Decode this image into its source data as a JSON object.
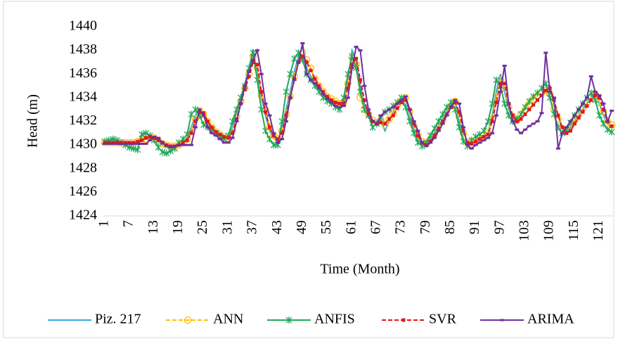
{
  "chart_data": {
    "type": "line",
    "x_label": "Time (Month)",
    "y_label": "Head (m)",
    "categories": [
      1,
      null,
      null,
      null,
      null,
      null,
      7,
      null,
      null,
      null,
      null,
      null,
      13,
      null,
      null,
      null,
      null,
      null,
      19,
      null,
      null,
      null,
      null,
      null,
      25,
      null,
      null,
      null,
      null,
      null,
      31,
      null,
      null,
      null,
      null,
      null,
      37,
      null,
      null,
      null,
      null,
      null,
      43,
      null,
      null,
      null,
      null,
      null,
      49,
      null,
      null,
      null,
      null,
      null,
      55,
      null,
      null,
      null,
      null,
      null,
      61,
      null,
      null,
      null,
      null,
      null,
      67,
      null,
      null,
      null,
      null,
      null,
      73,
      null,
      null,
      null,
      null,
      null,
      79,
      null,
      null,
      null,
      null,
      null,
      85,
      null,
      null,
      null,
      null,
      null,
      91,
      null,
      null,
      null,
      null,
      null,
      97,
      null,
      null,
      null,
      null,
      null,
      103,
      null,
      null,
      null,
      null,
      null,
      109,
      null,
      null,
      null,
      null,
      null,
      115,
      null,
      null,
      null,
      null,
      null,
      121,
      null,
      null,
      null
    ],
    "ylim": [
      1424,
      1440
    ],
    "yticks": [
      1424,
      1426,
      1428,
      1430,
      1432,
      1434,
      1436,
      1438,
      1440
    ],
    "grid": false,
    "series": [
      {
        "name": "Piz. 217",
        "color": "#35a9e0",
        "marker": "none",
        "dashed": false,
        "values": [
          1430.2,
          1430.2,
          1430.2,
          1430.1,
          1430.2,
          1430.2,
          1430.1,
          1430.2,
          1430.3,
          1430.4,
          1430.5,
          1430.6,
          1430.5,
          1430.3,
          1430.0,
          1429.9,
          1429.8,
          1429.9,
          1430.0,
          1430.3,
          1430.6,
          1431.5,
          1432.5,
          1433.0,
          1432.4,
          1431.8,
          1431.3,
          1431.0,
          1430.8,
          1430.6,
          1430.5,
          1431.5,
          1432.8,
          1434.0,
          1435.2,
          1436.5,
          1438.1,
          1436.0,
          1434.0,
          1432.5,
          1431.2,
          1430.6,
          1430.3,
          1431.5,
          1433.0,
          1434.5,
          1436.2,
          1437.5,
          1438.3,
          1436.5,
          1435.8,
          1435.3,
          1434.9,
          1434.5,
          1434.0,
          1433.8,
          1433.6,
          1433.4,
          1433.5,
          1435.5,
          1438.0,
          1437.2,
          1435.0,
          1433.5,
          1432.5,
          1432.0,
          1431.8,
          1432.0,
          1431.2,
          1432.0,
          1432.8,
          1433.5,
          1433.9,
          1434.0,
          1432.5,
          1431.3,
          1430.5,
          1430.1,
          1430.0,
          1430.5,
          1431.0,
          1431.6,
          1432.2,
          1432.8,
          1433.4,
          1433.8,
          1432.0,
          1430.5,
          1430.0,
          1430.2,
          1430.4,
          1430.6,
          1430.8,
          1431.0,
          1432.5,
          1434.5,
          1436.0,
          1434.5,
          1433.0,
          1432.3,
          1432.0,
          1432.3,
          1432.6,
          1433.0,
          1433.4,
          1433.8,
          1434.2,
          1434.6,
          1435.0,
          1433.5,
          1432.5,
          1431.5,
          1431.0,
          1431.5,
          1432.0,
          1432.5,
          1433.0,
          1433.5,
          1434.0,
          1434.5,
          1433.5,
          1432.5,
          1431.8,
          1431.5
        ]
      },
      {
        "name": "ANN",
        "color": "#ffc000",
        "marker": "circle",
        "dashed": true,
        "values": [
          1430.2,
          1430.2,
          1430.2,
          1430.2,
          1430.2,
          1430.2,
          1430.2,
          1430.2,
          1430.3,
          1430.4,
          1430.5,
          1430.6,
          1430.6,
          1430.4,
          1430.1,
          1430.0,
          1429.9,
          1429.9,
          1430.0,
          1430.2,
          1430.5,
          1431.2,
          1432.2,
          1432.9,
          1432.6,
          1432.0,
          1431.5,
          1431.1,
          1430.9,
          1430.7,
          1430.6,
          1431.2,
          1432.4,
          1433.7,
          1434.8,
          1436.0,
          1437.5,
          1436.5,
          1434.2,
          1433.0,
          1431.5,
          1430.8,
          1430.5,
          1431.2,
          1432.6,
          1434.1,
          1435.8,
          1437.3,
          1437.8,
          1437.2,
          1436.5,
          1435.6,
          1435.0,
          1434.5,
          1434.1,
          1433.9,
          1433.7,
          1433.5,
          1433.6,
          1435.2,
          1437.4,
          1436.8,
          1434.0,
          1433.0,
          1432.6,
          1432.1,
          1431.9,
          1432.1,
          1431.7,
          1432.2,
          1432.7,
          1433.4,
          1433.8,
          1434.0,
          1432.8,
          1431.6,
          1430.8,
          1430.3,
          1430.1,
          1430.5,
          1430.9,
          1431.5,
          1432.1,
          1432.7,
          1433.3,
          1433.7,
          1432.4,
          1431.0,
          1430.2,
          1430.3,
          1430.4,
          1430.6,
          1430.8,
          1431.0,
          1432.2,
          1434.0,
          1435.5,
          1434.8,
          1433.2,
          1432.4,
          1432.1,
          1432.6,
          1433.0,
          1433.5,
          1433.9,
          1434.2,
          1434.4,
          1434.6,
          1434.3,
          1433.0,
          1432.2,
          1431.4,
          1431.2,
          1431.6,
          1432.1,
          1432.6,
          1433.1,
          1433.6,
          1434.0,
          1434.3,
          1433.6,
          1432.8,
          1432.0,
          1431.7
        ]
      },
      {
        "name": "ANFIS",
        "color": "#1fa95a",
        "marker": "star",
        "dashed": false,
        "values": [
          1430.3,
          1430.4,
          1430.5,
          1430.4,
          1430.2,
          1430.0,
          1429.8,
          1429.7,
          1429.6,
          1430.9,
          1431.0,
          1430.8,
          1430.4,
          1429.8,
          1429.4,
          1429.3,
          1429.5,
          1429.7,
          1430.2,
          1430.5,
          1430.9,
          1432.6,
          1433.0,
          1432.5,
          1431.7,
          1431.5,
          1431.3,
          1431.0,
          1430.7,
          1430.5,
          1430.8,
          1432.0,
          1433.0,
          1434.0,
          1435.0,
          1436.5,
          1437.8,
          1435.5,
          1433.0,
          1431.2,
          1430.5,
          1430.0,
          1430.0,
          1432.0,
          1434.5,
          1436.0,
          1437.3,
          1437.8,
          1437.2,
          1436.0,
          1435.5,
          1435.0,
          1434.5,
          1434.0,
          1433.7,
          1433.5,
          1433.2,
          1433.0,
          1434.0,
          1436.0,
          1437.5,
          1436.5,
          1434.5,
          1433.0,
          1432.5,
          1431.5,
          1431.8,
          1432.3,
          1432.8,
          1433.0,
          1433.3,
          1433.6,
          1434.0,
          1433.2,
          1432.0,
          1431.0,
          1430.2,
          1429.9,
          1430.2,
          1430.8,
          1431.4,
          1432.0,
          1432.6,
          1433.2,
          1433.6,
          1433.0,
          1431.5,
          1430.3,
          1429.9,
          1430.4,
          1430.7,
          1430.9,
          1431.2,
          1432.0,
          1433.5,
          1435.5,
          1435.0,
          1433.5,
          1432.5,
          1432.0,
          1432.2,
          1432.6,
          1433.2,
          1433.7,
          1434.1,
          1434.4,
          1434.8,
          1435.2,
          1434.0,
          1432.6,
          1431.5,
          1431.0,
          1431.3,
          1431.9,
          1432.5,
          1433.0,
          1433.5,
          1434.0,
          1434.4,
          1433.8,
          1432.5,
          1431.8,
          1431.3,
          1431.1
        ]
      },
      {
        "name": "SVR",
        "color": "#e8141b",
        "marker": "square",
        "dashed": true,
        "values": [
          1430.2,
          1430.2,
          1430.2,
          1430.2,
          1430.2,
          1430.2,
          1430.2,
          1430.2,
          1430.3,
          1430.4,
          1430.6,
          1430.7,
          1430.6,
          1430.4,
          1430.2,
          1430.0,
          1429.9,
          1429.9,
          1430.0,
          1430.2,
          1430.4,
          1431.0,
          1432.0,
          1432.8,
          1432.7,
          1432.0,
          1431.5,
          1431.1,
          1430.9,
          1430.7,
          1430.6,
          1431.0,
          1432.2,
          1433.5,
          1434.7,
          1435.8,
          1437.0,
          1436.8,
          1434.5,
          1432.8,
          1431.5,
          1430.8,
          1430.5,
          1431.0,
          1432.5,
          1434.0,
          1435.6,
          1437.0,
          1437.5,
          1437.0,
          1436.3,
          1435.6,
          1435.0,
          1434.5,
          1434.1,
          1433.8,
          1433.6,
          1433.5,
          1433.5,
          1434.8,
          1436.8,
          1437.3,
          1435.5,
          1433.8,
          1432.6,
          1432.0,
          1431.8,
          1431.9,
          1431.8,
          1432.2,
          1432.5,
          1433.1,
          1433.6,
          1433.8,
          1433.0,
          1431.8,
          1430.8,
          1430.2,
          1430.0,
          1430.3,
          1430.8,
          1431.4,
          1432.0,
          1432.6,
          1433.2,
          1433.6,
          1432.8,
          1431.2,
          1430.2,
          1430.1,
          1430.3,
          1430.5,
          1430.7,
          1430.9,
          1432.0,
          1433.6,
          1435.2,
          1435.2,
          1433.5,
          1432.5,
          1432.0,
          1432.2,
          1432.6,
          1433.0,
          1433.4,
          1433.8,
          1434.2,
          1434.6,
          1434.8,
          1433.8,
          1432.5,
          1431.5,
          1431.0,
          1431.2,
          1431.8,
          1432.3,
          1432.8,
          1433.3,
          1433.8,
          1434.2,
          1434.0,
          1433.0,
          1432.0,
          1431.6
        ]
      },
      {
        "name": "ARIMA",
        "color": "#7030a0",
        "marker": "dash",
        "dashed": false,
        "values": [
          1430.1,
          1430.1,
          1430.1,
          1430.1,
          1430.1,
          1430.1,
          1430.1,
          1430.1,
          1430.1,
          1430.1,
          1430.1,
          1430.4,
          1430.7,
          1430.6,
          1430.2,
          1429.9,
          1429.8,
          1429.9,
          1430.0,
          1430.0,
          1430.0,
          1430.0,
          1431.5,
          1433.0,
          1432.5,
          1431.5,
          1431.0,
          1430.8,
          1430.5,
          1430.2,
          1430.2,
          1430.6,
          1432.0,
          1433.5,
          1435.0,
          1436.2,
          1437.2,
          1438.0,
          1436.0,
          1433.5,
          1432.5,
          1431.0,
          1430.2,
          1430.5,
          1432.0,
          1434.0,
          1435.5,
          1437.0,
          1438.6,
          1436.0,
          1435.5,
          1435.2,
          1434.8,
          1434.3,
          1433.9,
          1433.6,
          1433.3,
          1433.2,
          1433.3,
          1434.0,
          1436.5,
          1438.3,
          1438.0,
          1435.0,
          1433.0,
          1432.0,
          1431.8,
          1432.5,
          1432.8,
          1433.0,
          1433.2,
          1433.5,
          1433.8,
          1434.1,
          1433.0,
          1432.0,
          1431.2,
          1430.2,
          1429.9,
          1430.2,
          1430.6,
          1431.2,
          1431.8,
          1432.5,
          1433.2,
          1433.8,
          1433.5,
          1431.5,
          1430.0,
          1429.7,
          1430.0,
          1430.2,
          1430.4,
          1430.6,
          1431.0,
          1432.5,
          1434.5,
          1436.7,
          1433.5,
          1432.0,
          1431.3,
          1431.0,
          1431.3,
          1431.6,
          1431.8,
          1432.0,
          1432.7,
          1437.8,
          1434.5,
          1434.0,
          1429.7,
          1431.0,
          1431.5,
          1432.0,
          1432.5,
          1433.0,
          1433.5,
          1434.0,
          1435.8,
          1434.5,
          1434.2,
          1433.5,
          1432.0,
          1432.9
        ]
      }
    ]
  }
}
